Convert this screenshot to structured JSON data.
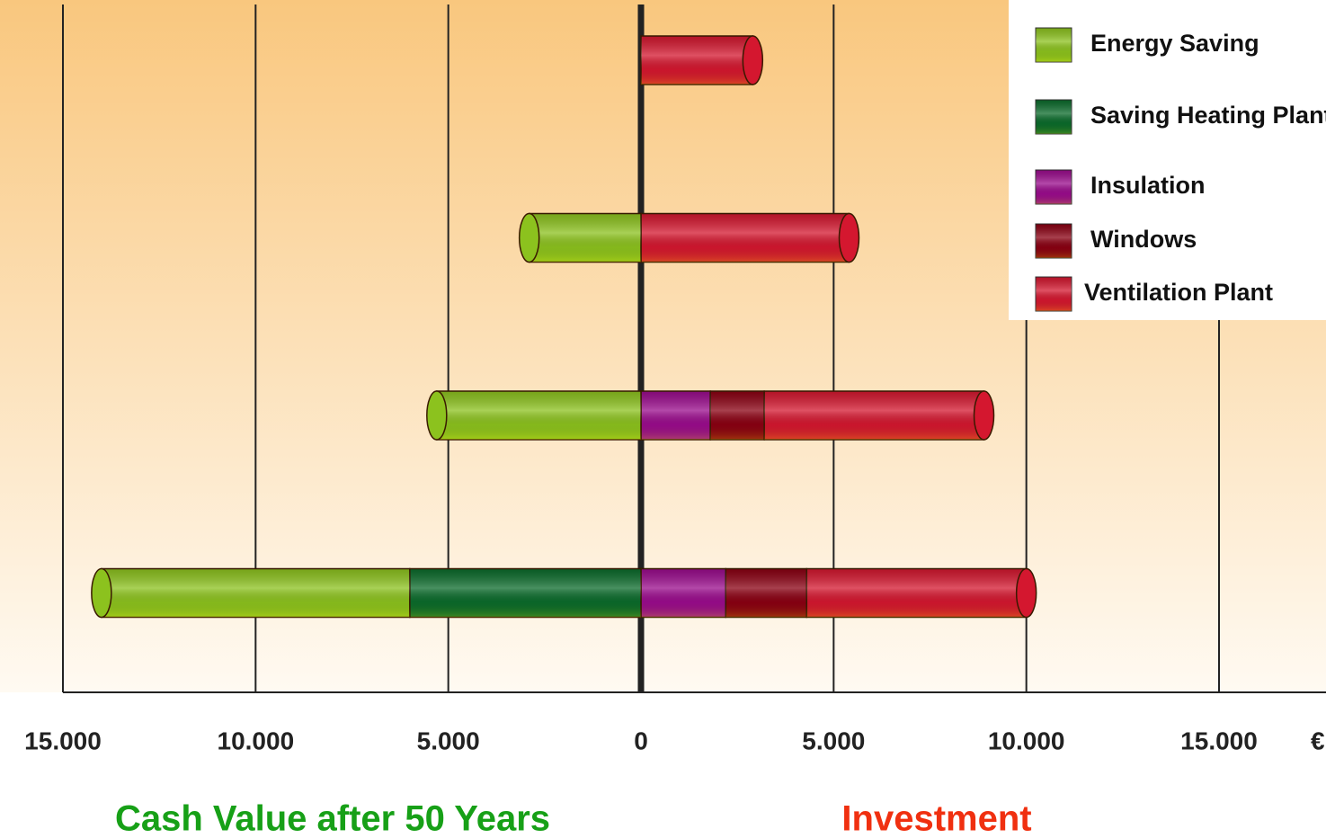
{
  "chart_data": {
    "type": "stacked-bar-horizontal",
    "categories": [
      null,
      null,
      null,
      null
    ],
    "series": [
      {
        "name": "Energy Saving",
        "color": "#8cc21e",
        "values": [
          null,
          -2900,
          -5300,
          -8000
        ]
      },
      {
        "name": "Saving Heating Plant",
        "color": "#0b6b2b",
        "values": [
          null,
          null,
          null,
          -6000
        ]
      },
      {
        "name": "Insulation",
        "color": "#9a0b8c",
        "values": [
          null,
          null,
          1800,
          2200
        ]
      },
      {
        "name": "Windows",
        "color": "#8a0012",
        "values": [
          null,
          null,
          1400,
          2100
        ]
      },
      {
        "name": "Ventilation Plant",
        "color": "#d4172f",
        "values": [
          2900,
          5400,
          5700,
          5700
        ]
      }
    ],
    "xlim": [
      -15000,
      17500
    ],
    "xticks": [
      {
        "value": -15000,
        "label": "15.000"
      },
      {
        "value": -10000,
        "label": "10.000"
      },
      {
        "value": -5000,
        "label": "5.000"
      },
      0,
      {
        "value": 5000,
        "label": "5.000"
      },
      {
        "value": 10000,
        "label": "10.000"
      },
      {
        "value": 15000,
        "label": "15.000"
      }
    ],
    "xlabel": "€",
    "left_title": "Cash Value after 50 Years",
    "right_title": "Investment",
    "grid": true,
    "legend": "upper right"
  }
}
